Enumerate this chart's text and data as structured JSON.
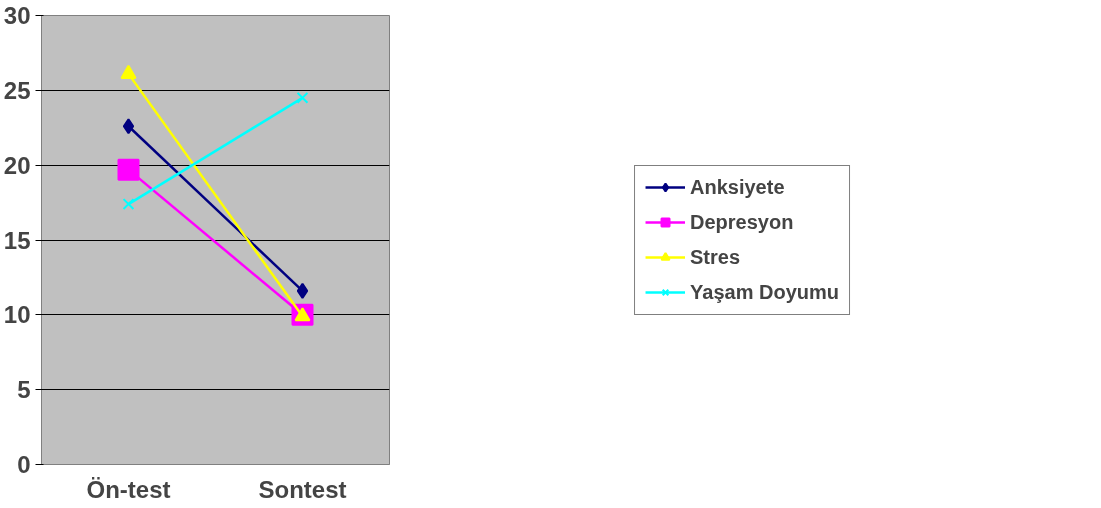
{
  "chart_data": {
    "type": "line",
    "categories": [
      "Ön-test",
      "Sontest"
    ],
    "series": [
      {
        "name": "Anksiyete",
        "color": "#000080",
        "marker": "diamond",
        "values": [
          22.6,
          11.6
        ]
      },
      {
        "name": "Depresyon",
        "color": "#ff00ff",
        "marker": "square",
        "values": [
          19.7,
          10.0
        ]
      },
      {
        "name": "Stres",
        "color": "#ffff00",
        "marker": "triangle",
        "values": [
          26.1,
          9.9
        ]
      },
      {
        "name": "Yaşam Doyumu",
        "color": "#00ffff",
        "marker": "cross",
        "values": [
          17.4,
          24.5
        ]
      }
    ],
    "ylim": [
      0,
      30
    ],
    "yticks": [
      0,
      5,
      10,
      15,
      20,
      25,
      30
    ],
    "grid": "y",
    "legend": "right",
    "line_style": "solid"
  }
}
